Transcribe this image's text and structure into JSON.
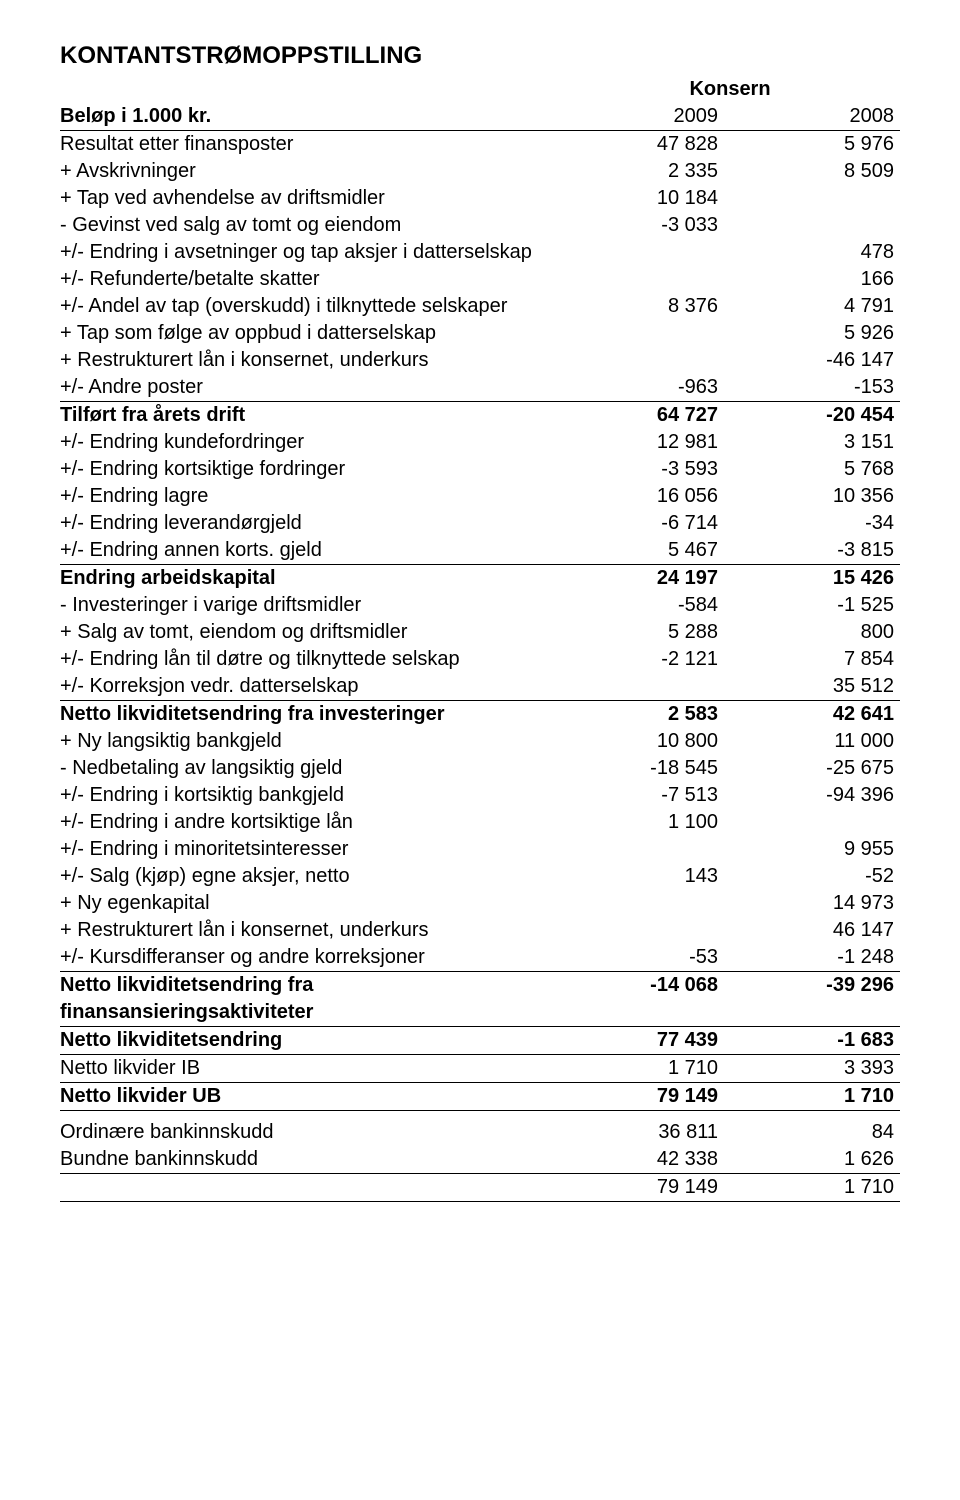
{
  "title": "KONTANTSTRØMOPPSTILLING",
  "konsern_label": "Konsern",
  "unit_label": "Beløp i 1.000 kr.",
  "year1": "2009",
  "year2": "2008",
  "colors": {
    "text": "#000000",
    "background": "#ffffff",
    "rule": "#000000"
  },
  "typography": {
    "font_family": "Arial",
    "title_size_pt": 18,
    "body_size_pt": 14
  },
  "rows": [
    {
      "label": "Resultat etter finansposter",
      "c1": "47 828",
      "c2": "5 976"
    },
    {
      "label": "+ Avskrivninger",
      "c1": "2 335",
      "c2": "8 509"
    },
    {
      "label": "+ Tap ved avhendelse av driftsmidler",
      "c1": "10 184",
      "c2": ""
    },
    {
      "label": "- Gevinst ved salg av tomt og eiendom",
      "c1": "-3 033",
      "c2": ""
    },
    {
      "label": "+/- Endring i avsetninger og tap aksjer i datterselskap",
      "c1": "",
      "c2": "478"
    },
    {
      "label": "+/- Refunderte/betalte skatter",
      "c1": "",
      "c2": "166"
    },
    {
      "label": "+/- Andel av tap (overskudd) i tilknyttede selskaper",
      "c1": "8 376",
      "c2": "4 791"
    },
    {
      "label": "+ Tap som følge av oppbud i datterselskap",
      "c1": "",
      "c2": "5 926"
    },
    {
      "label": "+ Restrukturert lån i konsernet, underkurs",
      "c1": "",
      "c2": "-46 147"
    },
    {
      "label": "+/- Andre poster",
      "c1": "-963",
      "c2": "-153",
      "uline": true
    },
    {
      "label": "Tilført fra årets drift",
      "c1": "64 727",
      "c2": "-20 454",
      "bold": true
    },
    {
      "label": "+/- Endring kundefordringer",
      "c1": "12 981",
      "c2": "3 151"
    },
    {
      "label": "+/- Endring kortsiktige fordringer",
      "c1": "-3 593",
      "c2": "5 768"
    },
    {
      "label": "+/- Endring lagre",
      "c1": "16 056",
      "c2": "10 356"
    },
    {
      "label": "+/- Endring leverandørgjeld",
      "c1": "-6 714",
      "c2": "-34"
    },
    {
      "label": "+/- Endring annen korts. gjeld",
      "c1": "5 467",
      "c2": "-3 815",
      "uline": true
    },
    {
      "label": "Endring arbeidskapital",
      "c1": "24 197",
      "c2": "15 426",
      "bold": true
    },
    {
      "label": "- Investeringer i varige driftsmidler",
      "c1": "-584",
      "c2": "-1 525"
    },
    {
      "label": "+ Salg av tomt, eiendom og driftsmidler",
      "c1": "5 288",
      "c2": "800"
    },
    {
      "label": "+/- Endring lån til døtre og tilknyttede selskap",
      "c1": "-2 121",
      "c2": "7 854"
    },
    {
      "label": "+/- Korreksjon vedr. datterselskap",
      "c1": "",
      "c2": "35 512",
      "uline": true
    },
    {
      "label": "Netto likviditetsendring fra investeringer",
      "c1": "2 583",
      "c2": "42 641",
      "bold": true
    },
    {
      "label": "+ Ny langsiktig bankgjeld",
      "c1": "10 800",
      "c2": "11 000"
    },
    {
      "label": "- Nedbetaling av langsiktig gjeld",
      "c1": "-18 545",
      "c2": "-25 675"
    },
    {
      "label": "+/- Endring i kortsiktig bankgjeld",
      "c1": "-7 513",
      "c2": "-94 396"
    },
    {
      "label": "+/- Endring i andre kortsiktige lån",
      "c1": "1 100",
      "c2": ""
    },
    {
      "label": "+/- Endring i minoritetsinteresser",
      "c1": "",
      "c2": "9 955"
    },
    {
      "label": "+/- Salg (kjøp) egne aksjer, netto",
      "c1": "143",
      "c2": "-52"
    },
    {
      "label": "+ Ny egenkapital",
      "c1": "",
      "c2": "14 973"
    },
    {
      "label": "+ Restrukturert lån i konsernet, underkurs",
      "c1": "",
      "c2": "46 147"
    },
    {
      "label": "+/- Kursdifferanser og andre korreksjoner",
      "c1": "-53",
      "c2": "-1 248",
      "uline": true
    },
    {
      "label": "Netto likviditetsendring fra finansansieringsaktiviteter",
      "c1": "-14 068",
      "c2": "-39 296",
      "bold": true,
      "uline": true
    },
    {
      "label": "Netto likviditetsendring",
      "c1": "77 439",
      "c2": "-1 683",
      "bold": true,
      "uline": true
    },
    {
      "label": "Netto likvider IB",
      "c1": "1 710",
      "c2": "3 393",
      "uline": true
    },
    {
      "label": "Netto likvider UB",
      "c1": "79 149",
      "c2": "1 710",
      "bold": true,
      "uline": true
    }
  ],
  "footer": [
    {
      "label": "Ordinære bankinnskudd",
      "c1": "36 811",
      "c2": "84"
    },
    {
      "label": "Bundne bankinnskudd",
      "c1": "42 338",
      "c2": "1 626",
      "uline": true
    },
    {
      "label": "",
      "c1": "79 149",
      "c2": "1 710",
      "uline": true
    }
  ]
}
